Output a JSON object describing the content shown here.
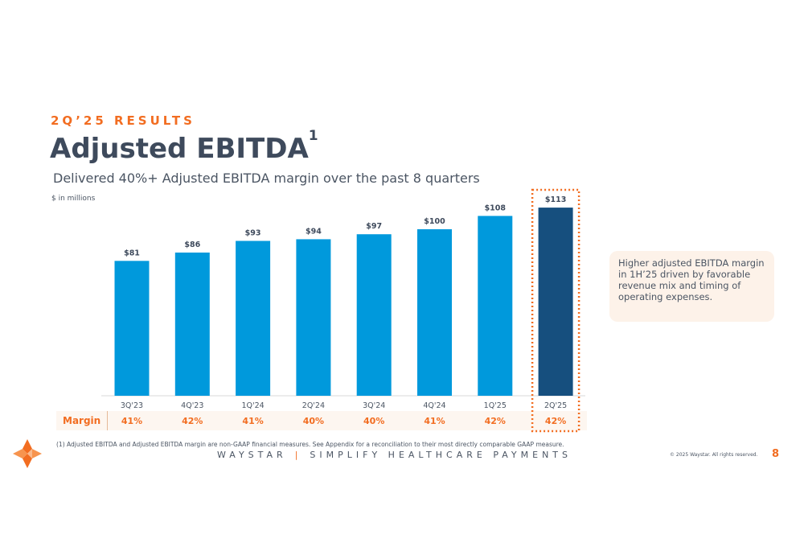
{
  "header": {
    "eyebrow": "2Q’25 RESULTS",
    "title": "Adjusted EBITDA",
    "title_sup": "1",
    "subtitle": "Delivered 40%+ Adjusted EBITDA margin over the past 8 quarters",
    "units": "$ in millions"
  },
  "chart_data": {
    "type": "bar",
    "categories": [
      "3Q'23",
      "4Q'23",
      "1Q'24",
      "2Q'24",
      "3Q'24",
      "4Q'24",
      "1Q'25",
      "2Q'25"
    ],
    "values": [
      81,
      86,
      93,
      94,
      97,
      100,
      108,
      113
    ],
    "value_labels": [
      "$81",
      "$86",
      "$93",
      "$94",
      "$97",
      "$100",
      "$108",
      "$113"
    ],
    "ylabel": "$ in millions",
    "ylim": [
      0,
      120
    ],
    "grid": false,
    "highlight_index": 7,
    "colors": {
      "bar": "#0099dc",
      "highlight": "#164f7e",
      "highlight_border": "#f26d21"
    },
    "margin_row": {
      "label": "Margin",
      "values": [
        "41%",
        "42%",
        "41%",
        "40%",
        "40%",
        "41%",
        "42%",
        "42%"
      ]
    }
  },
  "callout": {
    "text": "Higher adjusted EBITDA margin in 1H’25 driven by favorable revenue mix and timing of operating expenses."
  },
  "footer": {
    "footnote": "(1)   Adjusted EBITDA and Adjusted EBITDA margin are non-GAAP financial measures. See Appendix for a reconciliation to their most directly comparable GAAP measure.",
    "brand": "WAYSTAR",
    "separator": "|",
    "tagline": "SIMPLIFY HEALTHCARE PAYMENTS",
    "copyright": "© 2025 Waystar. All rights reserved.",
    "page_number": "8",
    "logo_icon": "waystar-star-logo-icon"
  },
  "colors": {
    "accent": "#f26d21",
    "title": "#3e4a5c",
    "text": "#4b5563"
  }
}
